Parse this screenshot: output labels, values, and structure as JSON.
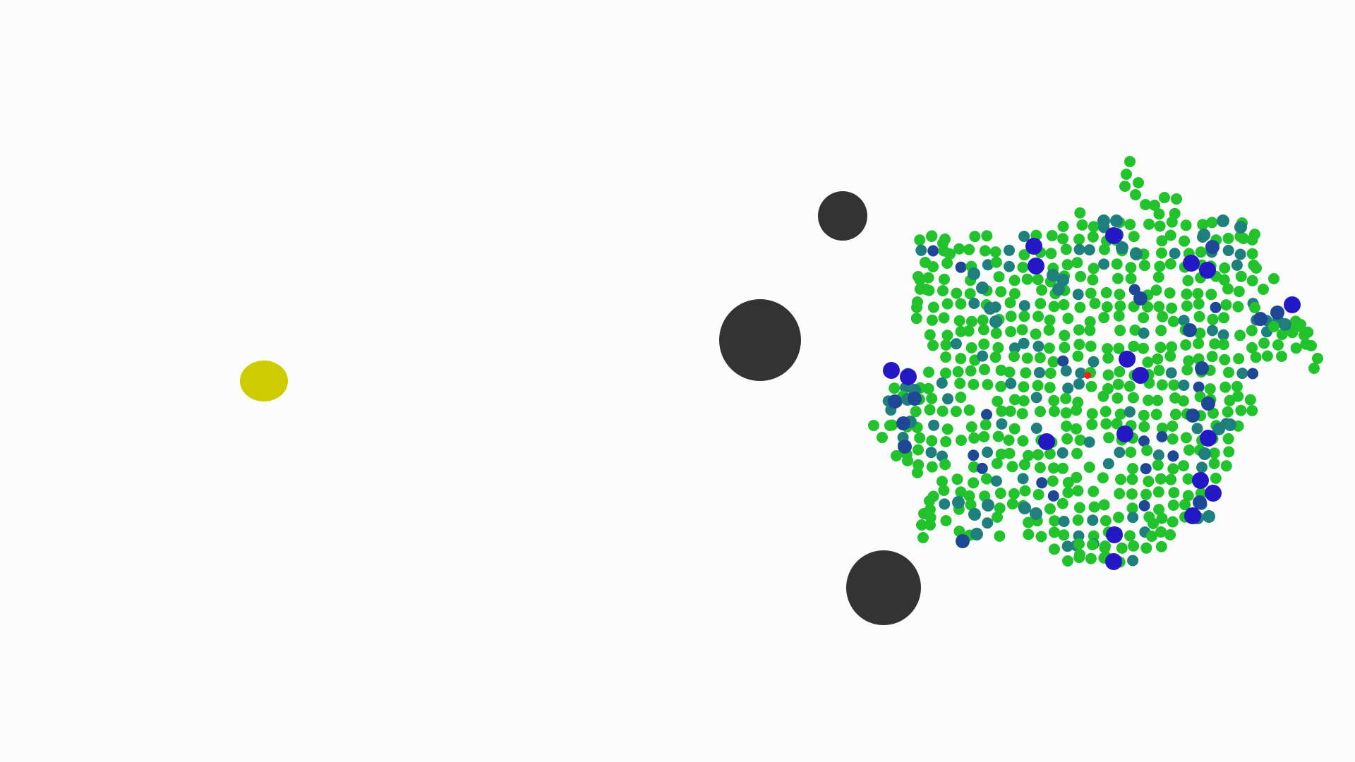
{
  "colors": {
    "background": "#fdfcfd",
    "goal": "#cccc00",
    "obstacle": "#333333",
    "swarm_green": "#22c22d",
    "swarm_teal": "#1f7f7c",
    "swarm_navy": "#1e4896",
    "swarm_blue": "#2418c4",
    "center_marker": "#ff1a1a"
  },
  "icons": {
    "goal": "yellow-ellipse-goal",
    "obstacle": "dark-circle-obstacle",
    "agent": "swarm-agent-dot",
    "center": "swarm-center-marker"
  }
}
